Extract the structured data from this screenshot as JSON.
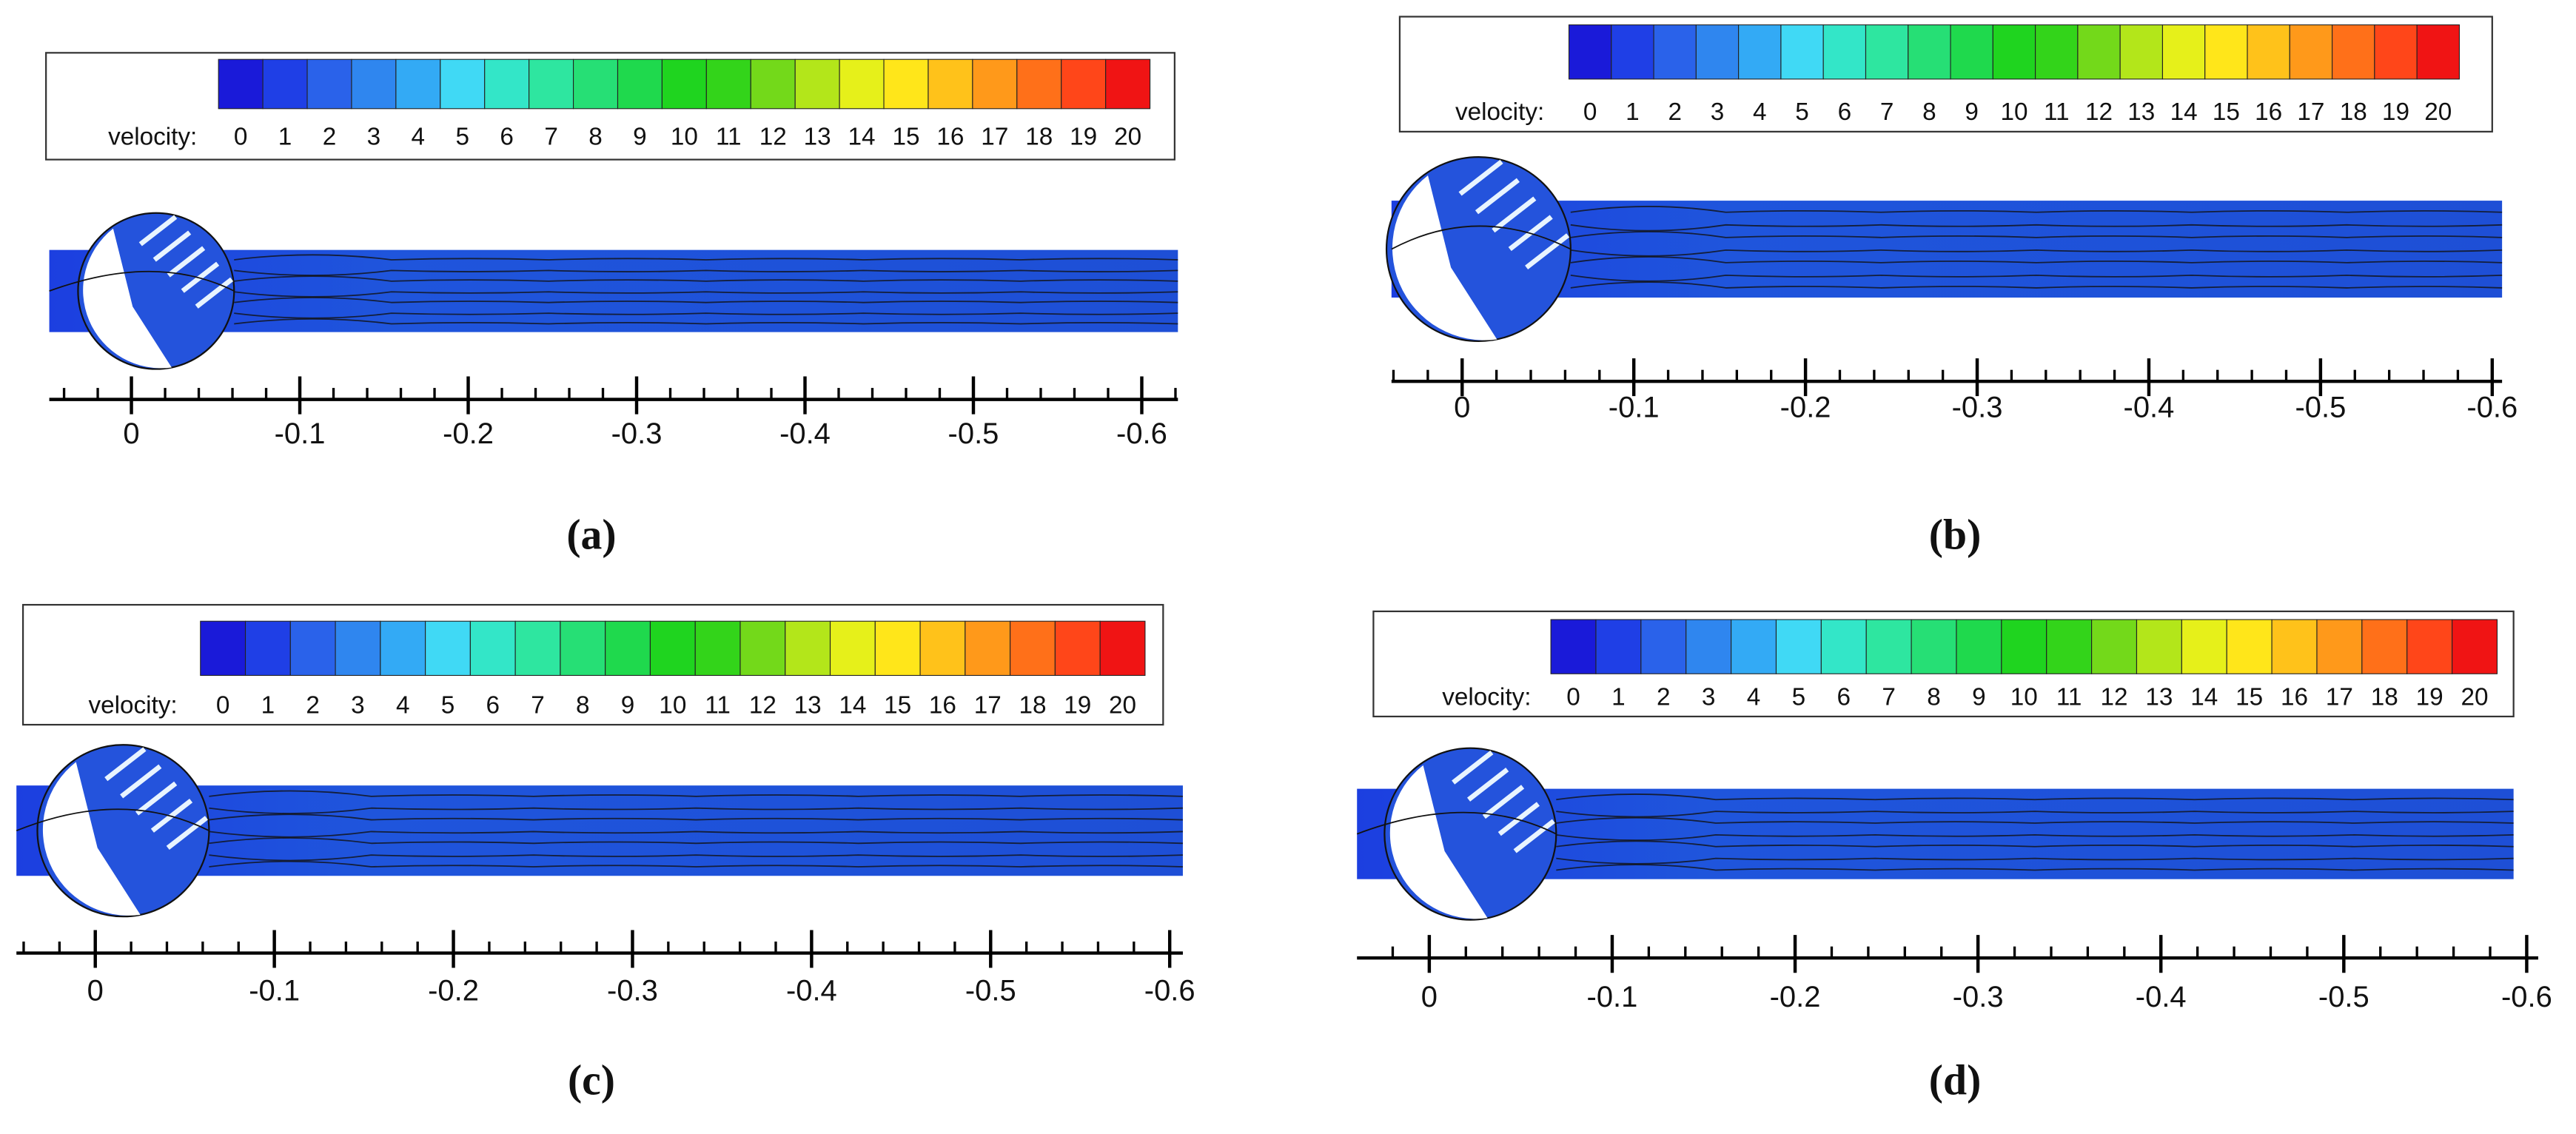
{
  "colormap": [
    "#1a1ad9",
    "#1f3fe6",
    "#2a62ea",
    "#2f86ef",
    "#33aaf5",
    "#40d9f5",
    "#33e6c8",
    "#2ee6a0",
    "#26df75",
    "#1fd94d",
    "#1fd41f",
    "#33d41a",
    "#73d91a",
    "#b3e61a",
    "#e6f01a",
    "#ffe61a",
    "#ffc21a",
    "#ff991a",
    "#ff7019",
    "#ff4619",
    "#f01414"
  ],
  "panels": [
    {
      "label": "(a)",
      "legend": {
        "title": "velocity:",
        "ticks": [
          0,
          1,
          2,
          3,
          4,
          5,
          6,
          7,
          8,
          9,
          10,
          11,
          12,
          13,
          14,
          15,
          16,
          17,
          18,
          19,
          20
        ]
      },
      "axis_ticks": [
        0,
        -0.1,
        -0.2,
        -0.3,
        -0.4,
        -0.5,
        -0.6
      ]
    },
    {
      "label": "(b)",
      "legend": {
        "title": "velocity:",
        "ticks": [
          0,
          1,
          2,
          3,
          4,
          5,
          6,
          7,
          8,
          9,
          10,
          11,
          12,
          13,
          14,
          15,
          16,
          17,
          18,
          19,
          20
        ]
      },
      "axis_ticks": [
        0,
        -0.1,
        -0.2,
        -0.3,
        -0.4,
        -0.5,
        -0.6
      ]
    },
    {
      "label": "(c)",
      "legend": {
        "title": "velocity:",
        "ticks": [
          0,
          1,
          2,
          3,
          4,
          5,
          6,
          7,
          8,
          9,
          10,
          11,
          12,
          13,
          14,
          15,
          16,
          17,
          18,
          19,
          20
        ]
      },
      "axis_ticks": [
        0,
        -0.1,
        -0.2,
        -0.3,
        -0.4,
        -0.5,
        -0.6
      ]
    },
    {
      "label": "(d)",
      "legend": {
        "title": "velocity:",
        "ticks": [
          0,
          1,
          2,
          3,
          4,
          5,
          6,
          7,
          8,
          9,
          10,
          11,
          12,
          13,
          14,
          15,
          16,
          17,
          18,
          19,
          20
        ]
      },
      "axis_ticks": [
        0,
        -0.1,
        -0.2,
        -0.3,
        -0.4,
        -0.5,
        -0.6
      ]
    }
  ]
}
